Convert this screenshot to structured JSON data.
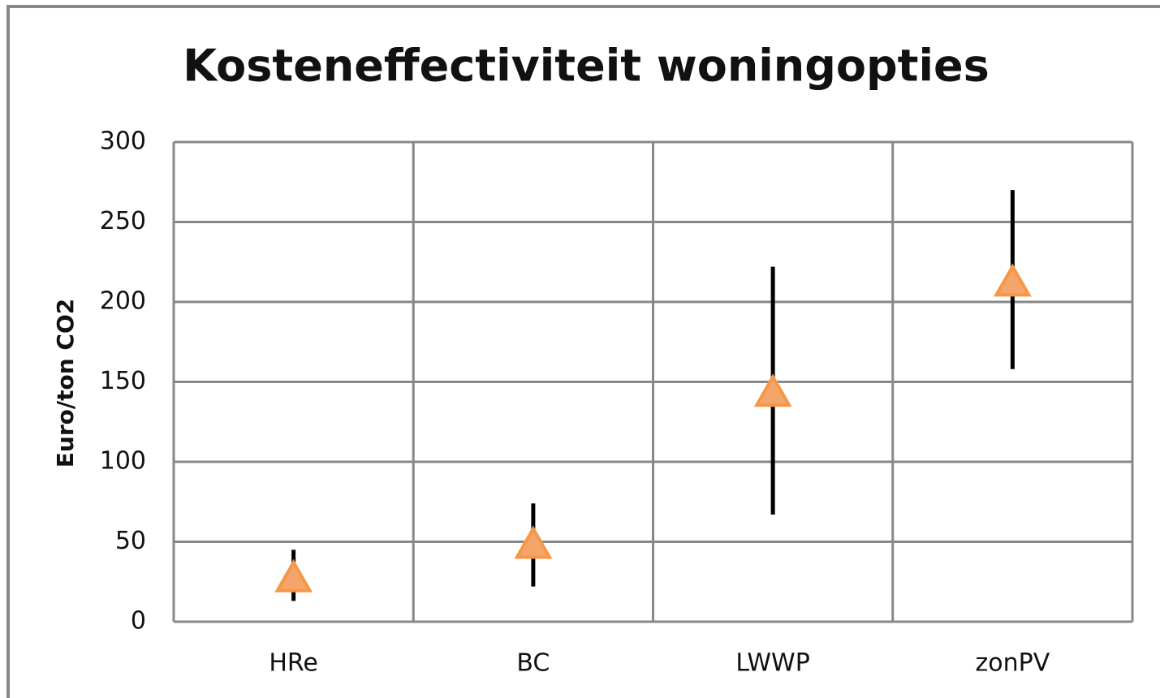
{
  "chart_data": {
    "type": "scatter",
    "title": "Kosteneffectiviteit  woningopties",
    "y_label": "Euro/ton CO2",
    "categories": [
      "HRe",
      "BC",
      "LWWP",
      "zonPV"
    ],
    "values": [
      27,
      48,
      143,
      212
    ],
    "low": [
      13,
      22,
      67,
      158
    ],
    "high": [
      45,
      74,
      222,
      270
    ],
    "color": "#f4a66a",
    "edge_color": "#f79646",
    "range_color": "#000000",
    "ylim": [
      0,
      300
    ],
    "yticks": [
      0,
      50,
      100,
      150,
      200,
      250,
      300
    ],
    "grid": true
  }
}
